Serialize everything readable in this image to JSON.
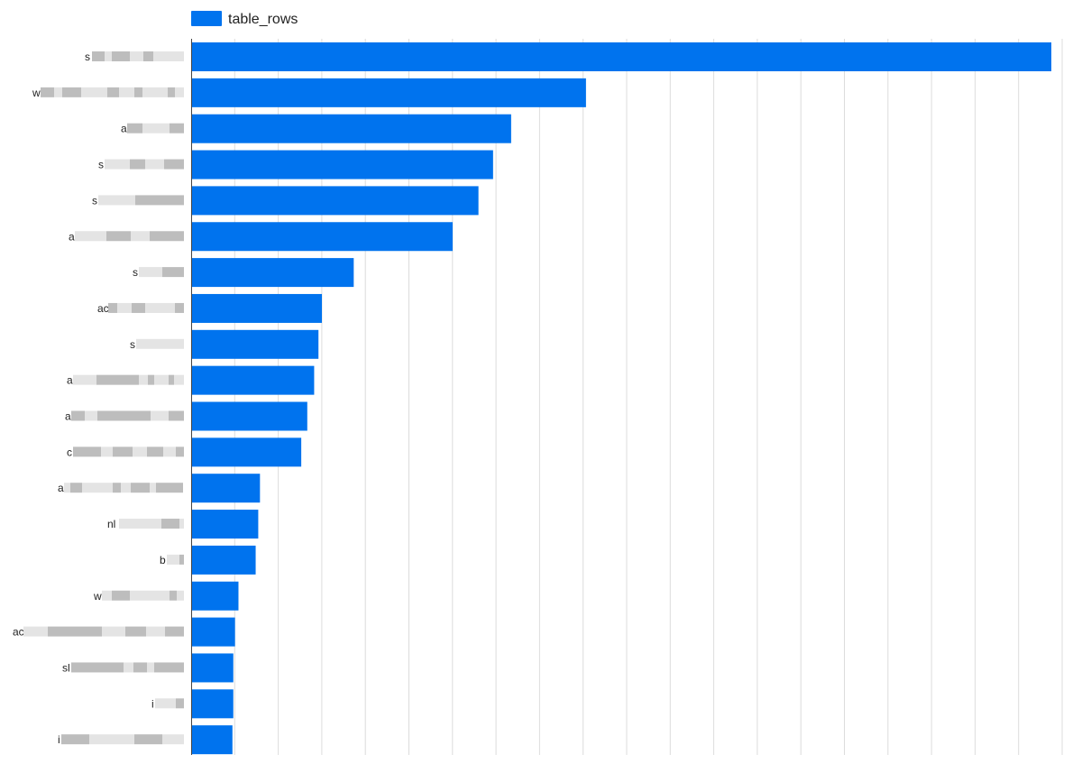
{
  "chart_data": {
    "type": "bar",
    "orientation": "horizontal",
    "categories": [
      "s",
      "w",
      "a",
      "s",
      "s",
      "a",
      "s",
      "ac",
      "s",
      "a",
      "a",
      "c",
      "a",
      "nl",
      "b",
      "w",
      "ac",
      "sl",
      "i",
      "i"
    ],
    "series": [
      {
        "name": "table_rows",
        "values": [
          1000,
          459,
          372,
          351,
          334,
          304,
          189,
          152,
          148,
          143,
          135,
          128,
          80,
          78,
          75,
          55,
          51,
          49,
          49,
          48
        ]
      }
    ],
    "xlim": [
      0,
      1000
    ],
    "grid": true,
    "legend_position": "top-left",
    "colors": {
      "bar": "#0073ee",
      "grid": "#dcdcdc",
      "axis": "#444444",
      "redaction_dark": "#bdbdbd",
      "redaction_light": "#e4e4e4"
    }
  }
}
